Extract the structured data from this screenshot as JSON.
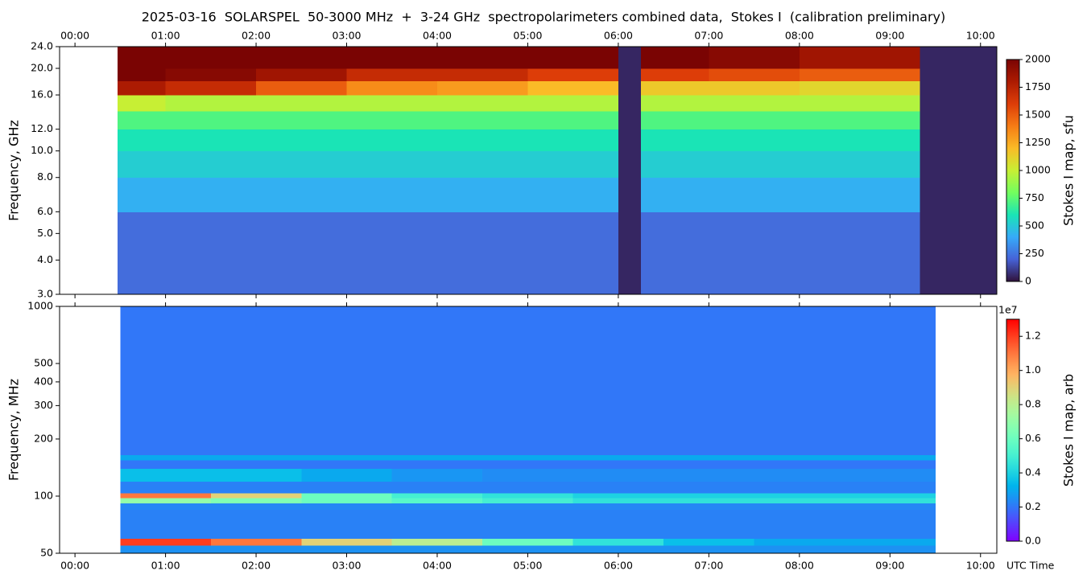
{
  "chart_data": [
    {
      "type": "heatmap",
      "title": "2025-03-16  SOLARSPEL  50-3000 MHz  +  3-24 GHz  spectropolarimeters combined data,  Stokes I  (calibration preliminary)",
      "ylabel": "Frequency, GHz",
      "yscale": "log",
      "colormap": "turbo",
      "xlim": [
        -0.17,
        10.18
      ],
      "xticks": [
        {
          "value": 0,
          "label": "00:00"
        },
        {
          "value": 1,
          "label": "01:00"
        },
        {
          "value": 2,
          "label": "02:00"
        },
        {
          "value": 3,
          "label": "03:00"
        },
        {
          "value": 4,
          "label": "04:00"
        },
        {
          "value": 5,
          "label": "05:00"
        },
        {
          "value": 6,
          "label": "06:00"
        },
        {
          "value": 7,
          "label": "07:00"
        },
        {
          "value": 8,
          "label": "08:00"
        },
        {
          "value": 9,
          "label": "09:00"
        },
        {
          "value": 10,
          "label": "10:00"
        }
      ],
      "xtick_position": "top",
      "ylim": [
        3,
        24
      ],
      "yticks": [
        {
          "value": 3,
          "label": "3.0"
        },
        {
          "value": 4,
          "label": "4.0"
        },
        {
          "value": 5,
          "label": "5.0"
        },
        {
          "value": 6,
          "label": "6.0"
        },
        {
          "value": 8,
          "label": "8.0"
        },
        {
          "value": 10,
          "label": "10.0"
        },
        {
          "value": 12,
          "label": "12.0"
        },
        {
          "value": 16,
          "label": "16.0"
        },
        {
          "value": 20,
          "label": "20.0"
        },
        {
          "value": 24,
          "label": "24.0"
        }
      ],
      "x_bins": [
        0.47,
        1,
        2,
        3,
        4,
        5,
        6,
        6.25,
        7,
        8,
        9,
        9.33,
        10.18
      ],
      "y_bins": [
        3,
        6,
        8,
        10,
        12,
        14,
        16,
        18,
        20,
        24
      ],
      "values": [
        [
          230,
          230,
          230,
          230,
          230,
          230,
          50,
          230,
          230,
          230,
          230,
          50
        ],
        [
          420,
          420,
          420,
          420,
          420,
          420,
          50,
          420,
          420,
          420,
          420,
          50
        ],
        [
          520,
          520,
          520,
          520,
          520,
          520,
          50,
          520,
          520,
          520,
          520,
          50
        ],
        [
          600,
          600,
          600,
          600,
          600,
          600,
          50,
          600,
          600,
          600,
          600,
          50
        ],
        [
          720,
          720,
          720,
          720,
          720,
          720,
          50,
          720,
          720,
          720,
          720,
          50
        ],
        [
          1000,
          950,
          950,
          950,
          950,
          950,
          50,
          950,
          950,
          950,
          950,
          50
        ],
        [
          1800,
          1700,
          1500,
          1350,
          1300,
          1200,
          50,
          1150,
          1150,
          1100,
          1100,
          50
        ],
        [
          2000,
          1950,
          1850,
          1700,
          1700,
          1600,
          50,
          1600,
          1550,
          1500,
          1500,
          50
        ],
        [
          2000,
          2000,
          2000,
          2000,
          2000,
          2000,
          50,
          2000,
          1950,
          1850,
          1850,
          50
        ]
      ],
      "colorbar": {
        "label": "Stokes I map, sfu",
        "lim": [
          0,
          2000
        ],
        "ticks": [
          0,
          250,
          500,
          750,
          1000,
          1250,
          1500,
          1750,
          2000
        ]
      }
    },
    {
      "type": "heatmap",
      "ylabel": "Frequency, MHz",
      "xlabel": "UTC Time",
      "yscale": "log",
      "colormap": "rainbow",
      "xlim": [
        -0.17,
        10.18
      ],
      "xticks": [
        {
          "value": 0,
          "label": "00:00"
        },
        {
          "value": 1,
          "label": "01:00"
        },
        {
          "value": 2,
          "label": "02:00"
        },
        {
          "value": 3,
          "label": "03:00"
        },
        {
          "value": 4,
          "label": "04:00"
        },
        {
          "value": 5,
          "label": "05:00"
        },
        {
          "value": 6,
          "label": "06:00"
        },
        {
          "value": 7,
          "label": "07:00"
        },
        {
          "value": 8,
          "label": "08:00"
        },
        {
          "value": 9,
          "label": "09:00"
        },
        {
          "value": 10,
          "label": "10:00"
        }
      ],
      "xtick_position": "bottom",
      "ylim": [
        50,
        1000
      ],
      "yticks": [
        50,
        100,
        200,
        300,
        400,
        500,
        1000
      ],
      "x_bins": [
        0.5,
        1.5,
        2.5,
        3.5,
        4.5,
        5.5,
        6.5,
        7.5,
        8.5,
        9.5
      ],
      "y_bins": [
        50,
        55,
        60,
        85,
        92,
        98,
        104,
        120,
        140,
        155,
        165,
        1000
      ],
      "values": [
        [
          2500000,
          2500000,
          2500000,
          2500000,
          2500000,
          2500000,
          2500000,
          2500000,
          2500000
        ],
        [
          12000000,
          11000000,
          9000000,
          8000000,
          6000000,
          4500000,
          3500000,
          3000000,
          3000000
        ],
        [
          2200000,
          2200000,
          2200000,
          2200000,
          2200000,
          2200000,
          2200000,
          2200000,
          2200000
        ],
        [
          2300000,
          2300000,
          2300000,
          2300000,
          2300000,
          2300000,
          2300000,
          2300000,
          2300000
        ],
        [
          7000000,
          6500000,
          6000000,
          5500000,
          5000000,
          4500000,
          4500000,
          4500000,
          4500000
        ],
        [
          11000000,
          9000000,
          6000000,
          5000000,
          4500000,
          4000000,
          4000000,
          4000000,
          4000000
        ],
        [
          2200000,
          2200000,
          2200000,
          2200000,
          2200000,
          2200000,
          2200000,
          2200000,
          2200000
        ],
        [
          3500000,
          3500000,
          3000000,
          2600000,
          2400000,
          2400000,
          2400000,
          2400000,
          2400000
        ],
        [
          2000000,
          2000000,
          2000000,
          2000000,
          2000000,
          2000000,
          2000000,
          2000000,
          2000000
        ],
        [
          3000000,
          3000000,
          3000000,
          3000000,
          3000000,
          3000000,
          3000000,
          3000000,
          3000000
        ],
        [
          2000000,
          2000000,
          2000000,
          2000000,
          2000000,
          2000000,
          2000000,
          2000000,
          2000000
        ]
      ],
      "colorbar": {
        "label": "Stokes I map, arb",
        "offset_label": "1e7",
        "lim": [
          0,
          13000000
        ],
        "ticks": [
          {
            "value": 0,
            "label": "0.0"
          },
          {
            "value": 2000000,
            "label": "0.2"
          },
          {
            "value": 4000000,
            "label": "0.4"
          },
          {
            "value": 6000000,
            "label": "0.6"
          },
          {
            "value": 8000000,
            "label": "0.8"
          },
          {
            "value": 10000000,
            "label": "1.0"
          },
          {
            "value": 12000000,
            "label": "1.2"
          }
        ]
      }
    }
  ]
}
